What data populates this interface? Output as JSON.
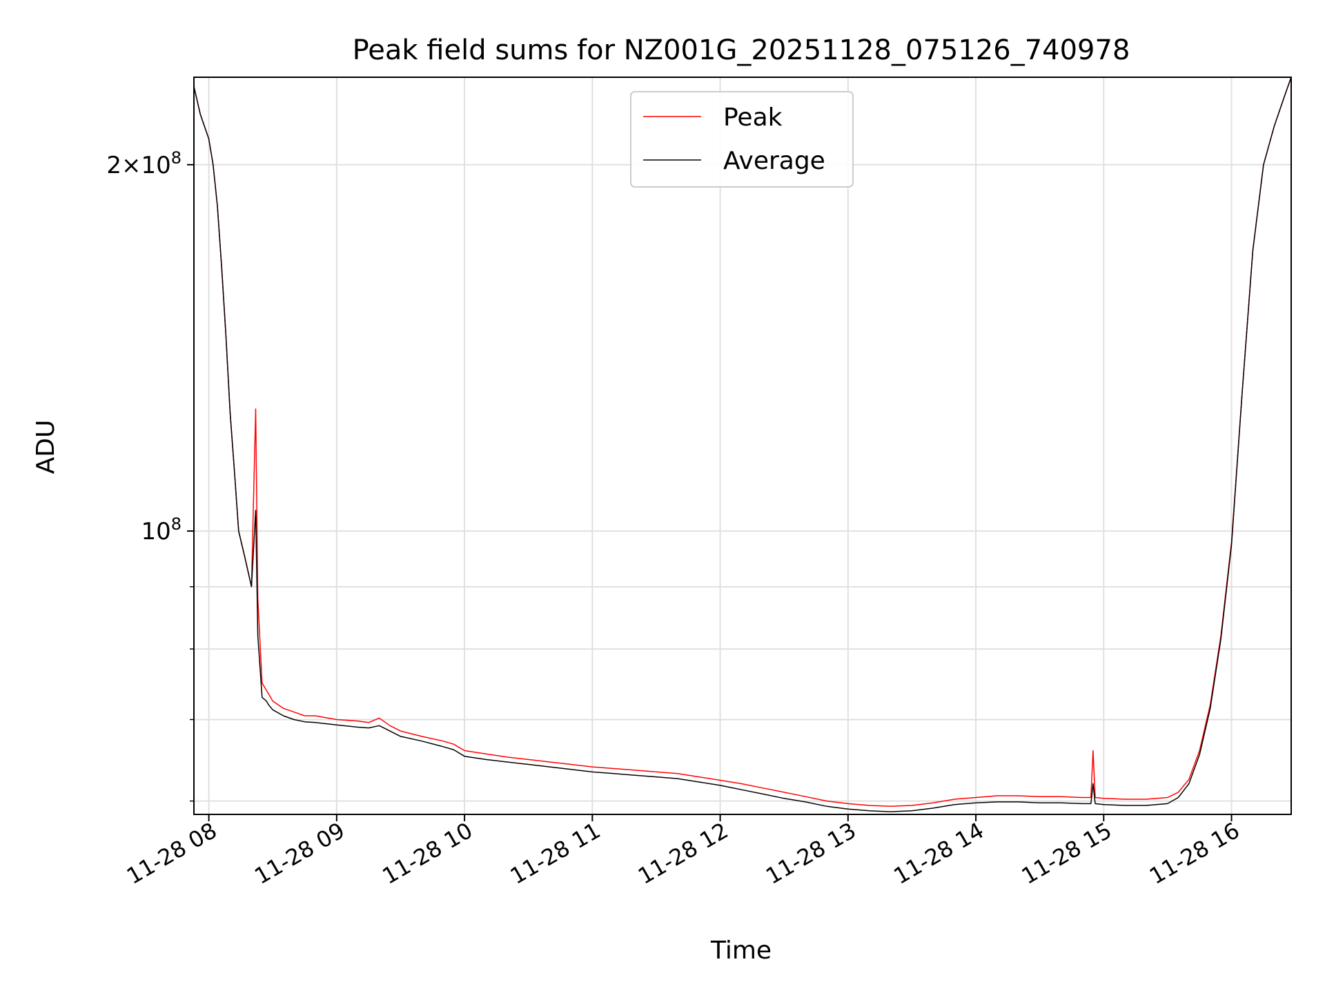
{
  "chart_data": {
    "type": "line",
    "title": "Peak field sums for NZ001G_20251128_075126_740978",
    "xlabel": "Time",
    "ylabel": "ADU",
    "x_unit": "time of day, 2025-11-28",
    "yscale": "log",
    "xlim": [
      "07:53",
      "16:28"
    ],
    "ylim": [
      58500000,
      236000000
    ],
    "grid": true,
    "legend": {
      "location": "upper center"
    },
    "x_ticks": [
      "11-28 08",
      "11-28 09",
      "11-28 10",
      "11-28 11",
      "11-28 12",
      "11-28 13",
      "11-28 14",
      "11-28 15",
      "11-28 16"
    ],
    "y_ticks": [
      {
        "value": 100000000,
        "base": "10",
        "exponent": "8",
        "mantissa": ""
      },
      {
        "value": 200000000,
        "base": "10",
        "exponent": "8",
        "mantissa": "2"
      }
    ],
    "y_minor_ticks": [
      60000000,
      70000000,
      80000000,
      90000000
    ],
    "colors": {
      "peak": "#ff0000",
      "average": "#000000",
      "grid": "#e0e0e0"
    },
    "series": [
      {
        "name": "Peak",
        "color": "#ff0000",
        "x": [
          "07:52",
          "07:56",
          "08:00",
          "08:02",
          "08:04",
          "08:06",
          "08:08",
          "08:10",
          "08:12",
          "08:14",
          "08:17",
          "08:20",
          "08:22",
          "08:23",
          "08:25",
          "08:27",
          "08:28",
          "08:30",
          "08:35",
          "08:40",
          "08:45",
          "08:50",
          "09:00",
          "09:10",
          "09:15",
          "09:20",
          "09:25",
          "09:30",
          "09:40",
          "09:50",
          "09:55",
          "10:00",
          "10:10",
          "10:20",
          "10:30",
          "10:40",
          "10:50",
          "11:00",
          "11:10",
          "11:20",
          "11:30",
          "11:40",
          "11:50",
          "12:00",
          "12:10",
          "12:20",
          "12:30",
          "12:40",
          "12:50",
          "13:00",
          "13:10",
          "13:20",
          "13:30",
          "13:40",
          "13:50",
          "14:00",
          "14:10",
          "14:20",
          "14:30",
          "14:40",
          "14:50",
          "14:54",
          "14:55",
          "14:56",
          "15:00",
          "15:10",
          "15:20",
          "15:30",
          "15:35",
          "15:40",
          "15:45",
          "15:50",
          "15:55",
          "16:00",
          "16:05",
          "16:10",
          "16:15",
          "16:20",
          "16:25",
          "16:28"
        ],
        "y": [
          236000000,
          220000000,
          210000000,
          200000000,
          185000000,
          165000000,
          145000000,
          125000000,
          112000000,
          100000000,
          95000000,
          90000000,
          126000000,
          88000000,
          75000000,
          74000000,
          73500000,
          72500000,
          71500000,
          71000000,
          70500000,
          70500000,
          70000000,
          69800000,
          69600000,
          70200000,
          69200000,
          68500000,
          67800000,
          67200000,
          66800000,
          66000000,
          65600000,
          65200000,
          64900000,
          64600000,
          64300000,
          64000000,
          63800000,
          63600000,
          63400000,
          63200000,
          62800000,
          62400000,
          62000000,
          61500000,
          61000000,
          60500000,
          60000000,
          59700000,
          59500000,
          59400000,
          59500000,
          59800000,
          60200000,
          60400000,
          60600000,
          60600000,
          60500000,
          60500000,
          60400000,
          60400000,
          66000000,
          60400000,
          60300000,
          60200000,
          60200000,
          60400000,
          61000000,
          62500000,
          66000000,
          72000000,
          82000000,
          98000000,
          130000000,
          170000000,
          200000000,
          215000000,
          228000000,
          236000000
        ]
      },
      {
        "name": "Average",
        "color": "#000000",
        "x": [
          "07:52",
          "07:56",
          "08:00",
          "08:02",
          "08:04",
          "08:06",
          "08:08",
          "08:10",
          "08:12",
          "08:14",
          "08:17",
          "08:20",
          "08:22",
          "08:23",
          "08:25",
          "08:27",
          "08:28",
          "08:30",
          "08:35",
          "08:40",
          "08:45",
          "08:50",
          "09:00",
          "09:10",
          "09:15",
          "09:20",
          "09:25",
          "09:30",
          "09:40",
          "09:50",
          "09:55",
          "10:00",
          "10:10",
          "10:20",
          "10:30",
          "10:40",
          "10:50",
          "11:00",
          "11:10",
          "11:20",
          "11:30",
          "11:40",
          "11:50",
          "12:00",
          "12:10",
          "12:20",
          "12:30",
          "12:40",
          "12:50",
          "13:00",
          "13:10",
          "13:20",
          "13:30",
          "13:40",
          "13:50",
          "14:00",
          "14:10",
          "14:20",
          "14:30",
          "14:40",
          "14:50",
          "14:54",
          "14:55",
          "14:56",
          "15:00",
          "15:10",
          "15:20",
          "15:30",
          "15:35",
          "15:40",
          "15:45",
          "15:50",
          "15:55",
          "16:00",
          "16:05",
          "16:10",
          "16:15",
          "16:20",
          "16:25",
          "16:28"
        ],
        "y": [
          236000000,
          220000000,
          210000000,
          200000000,
          185000000,
          165000000,
          145000000,
          125000000,
          112000000,
          100000000,
          95000000,
          90000000,
          104000000,
          82000000,
          73000000,
          72500000,
          72000000,
          71300000,
          70500000,
          70000000,
          69700000,
          69600000,
          69300000,
          69000000,
          68900000,
          69200000,
          68500000,
          67800000,
          67200000,
          66500000,
          66100000,
          65300000,
          64900000,
          64600000,
          64300000,
          64000000,
          63700000,
          63400000,
          63200000,
          63000000,
          62800000,
          62600000,
          62200000,
          61800000,
          61300000,
          60800000,
          60300000,
          59900000,
          59400000,
          59100000,
          58900000,
          58800000,
          58900000,
          59200000,
          59600000,
          59800000,
          59900000,
          59900000,
          59800000,
          59800000,
          59700000,
          59700000,
          62000000,
          59700000,
          59600000,
          59500000,
          59500000,
          59700000,
          60400000,
          62000000,
          65500000,
          71500000,
          81500000,
          97500000,
          130000000,
          170000000,
          200000000,
          215000000,
          228000000,
          236000000
        ]
      }
    ]
  }
}
